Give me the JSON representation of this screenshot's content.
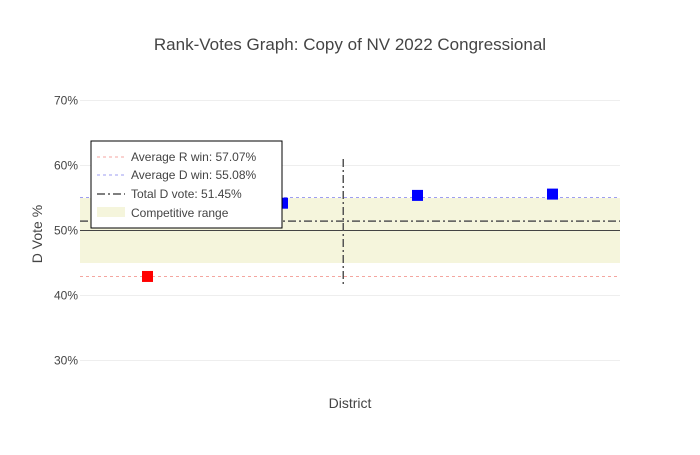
{
  "chart_data": {
    "type": "scatter",
    "title": "Rank-Votes Graph: Copy of NV 2022 Congressional",
    "xlabel": "District",
    "ylabel": "D Vote %",
    "ylim": [
      25,
      75
    ],
    "yticks": [
      30,
      40,
      50,
      60,
      70
    ],
    "ytick_labels": [
      "30%",
      "40%",
      "50%",
      "60%",
      "70%"
    ],
    "xlim": [
      0.5,
      4.5
    ],
    "points": [
      {
        "x": 1,
        "y": 42.93,
        "party": "R",
        "color": "#ff0000"
      },
      {
        "x": 2,
        "y": 54.2,
        "party": "D",
        "color": "#0000ff"
      },
      {
        "x": 3,
        "y": 55.4,
        "party": "D",
        "color": "#0000ff"
      },
      {
        "x": 4,
        "y": 55.6,
        "party": "D",
        "color": "#0000ff"
      }
    ],
    "reference_lines": {
      "avg_r_win": {
        "label": "Average R win: 57.07%",
        "y": 42.93,
        "color": "#f4a6a0"
      },
      "avg_d_win": {
        "label": "Average D win: 55.08%",
        "y": 55.08,
        "color": "#9e9ef0"
      },
      "total_d_vote": {
        "label": "Total D vote: 51.45%",
        "y": 51.45,
        "color": "#555555"
      },
      "fifty_line": {
        "y": 50,
        "color": "#444444"
      },
      "divider_x": 2.45
    },
    "competitive_range": {
      "label": "Competitive range",
      "y0": 45,
      "y1": 55,
      "color": "#f5f5dc"
    },
    "legend": {
      "placement": "top-left"
    },
    "grid": true
  }
}
